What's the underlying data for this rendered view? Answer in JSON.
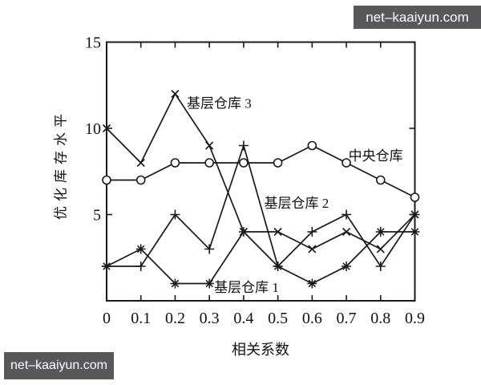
{
  "watermarks": {
    "top_right": "net–kaaiyun.com",
    "bottom_left": "net–kaaiyun.com",
    "bg_color": "#58585a",
    "text_color": "#ffffff"
  },
  "chart_data": {
    "type": "line",
    "title": "",
    "xlabel": "相关系数",
    "ylabel": "优化库存水平",
    "x": [
      0,
      0.1,
      0.2,
      0.3,
      0.4,
      0.5,
      0.6,
      0.7,
      0.8,
      0.9
    ],
    "xlim": [
      0,
      0.9
    ],
    "ylim": [
      0,
      15
    ],
    "xtick_labels": [
      "0",
      "0.1",
      "0.2",
      "0.3",
      "0.4",
      "0.5",
      "0.6",
      "0.7",
      "0.8",
      "0.9"
    ],
    "ytick_values": [
      5,
      10,
      15
    ],
    "ytick_labels": [
      "5",
      "10",
      "15"
    ],
    "grid": false,
    "legend_position": "inline-annotations",
    "line_color": "#1a1a1a",
    "series": [
      {
        "name": "中央仓库",
        "marker": "circle",
        "values": [
          7,
          7,
          8,
          8,
          8,
          8,
          9,
          8,
          7,
          6
        ],
        "label_x": 0.706,
        "label_y": 8.13
      },
      {
        "name": "基层仓库 3",
        "marker": "x",
        "values": [
          10,
          8,
          12,
          9,
          4,
          4,
          3,
          4,
          3,
          5
        ],
        "label_x": 0.234,
        "label_y": 11.19
      },
      {
        "name": "基层仓库 2",
        "marker": "plus",
        "values": [
          2,
          2,
          5,
          3,
          9,
          2,
          4,
          5,
          2,
          5
        ],
        "label_x": 0.46,
        "label_y": 5.39
      },
      {
        "name": "基层仓库 1",
        "marker": "asterisk",
        "values": [
          2,
          3,
          1,
          1,
          4,
          2,
          1,
          2,
          4,
          4
        ],
        "label_x": 0.314,
        "label_y": 0.51
      }
    ]
  }
}
